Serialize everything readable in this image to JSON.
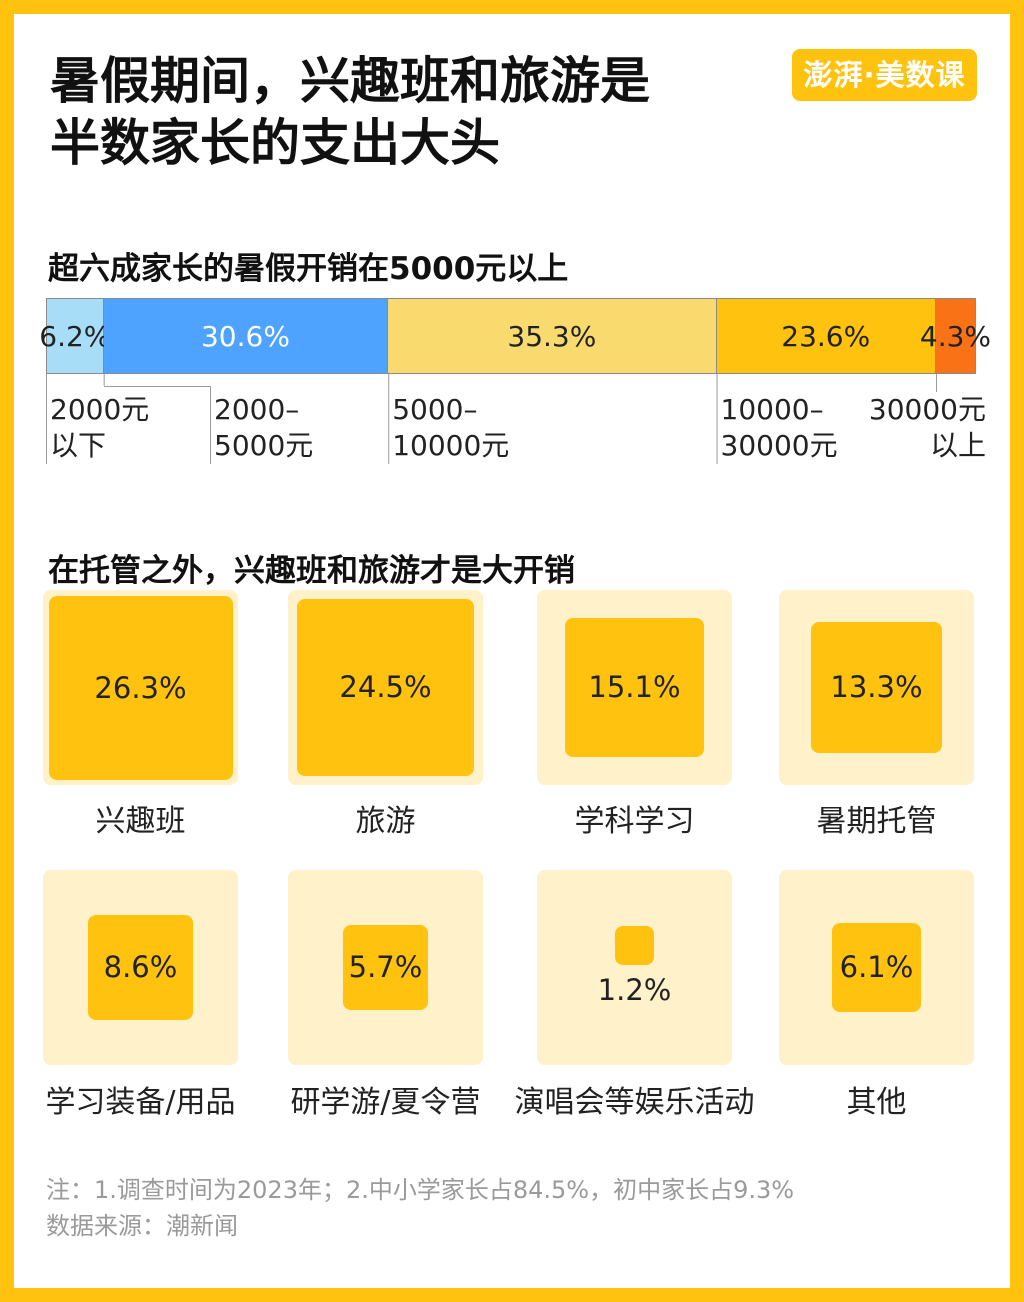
{
  "header": {
    "title_line1": "暑假期间，兴趣班和旅游是",
    "title_line2": "半数家长的支出大头",
    "logo_text": "澎湃·美数课"
  },
  "colors": {
    "frame": "#FFC20E",
    "seg1": "#A8DDF7",
    "seg2": "#4DA3FF",
    "seg3": "#F8DA6E",
    "seg4": "#FFC20E",
    "seg5": "#F97316",
    "tile_bg": "#FFF1C9",
    "square": "#FFC20E"
  },
  "chart_data": [
    {
      "type": "bar",
      "orientation": "stacked-horizontal",
      "title": "超六成家长的暑假开销在5000元以上",
      "categories": [
        "2000元以下",
        "2000–5000元",
        "5000–10000元",
        "10000–30000元",
        "30000元以上"
      ],
      "values": [
        6.2,
        30.6,
        35.3,
        23.6,
        4.3
      ],
      "labels": [
        "6.2%",
        "30.6%",
        "35.3%",
        "23.6%",
        "4.3%"
      ],
      "range_labels": [
        [
          "2000元",
          "以下"
        ],
        [
          "2000–",
          "5000元"
        ],
        [
          "5000–",
          "10000元"
        ],
        [
          "10000–",
          "30000元"
        ],
        [
          "30000元",
          "以上"
        ]
      ]
    },
    {
      "type": "table",
      "visual": "proportional-squares",
      "title": "在托管之外，兴趣班和旅游才是大开销",
      "categories": [
        "兴趣班",
        "旅游",
        "学科学习",
        "暑期托管",
        "学习装备/用品",
        "研学游/夏令营",
        "演唱会等娱乐活动",
        "其他"
      ],
      "values": [
        26.3,
        24.5,
        15.1,
        13.3,
        8.6,
        5.7,
        1.2,
        6.1
      ],
      "labels": [
        "26.3%",
        "24.5%",
        "15.1%",
        "13.3%",
        "8.6%",
        "5.7%",
        "1.2%",
        "6.1%"
      ]
    }
  ],
  "footer": {
    "note": "注：1.调查时间为2023年；2.中小学家长占84.5%，初中家长占9.3%",
    "source": "数据来源：潮新闻"
  }
}
